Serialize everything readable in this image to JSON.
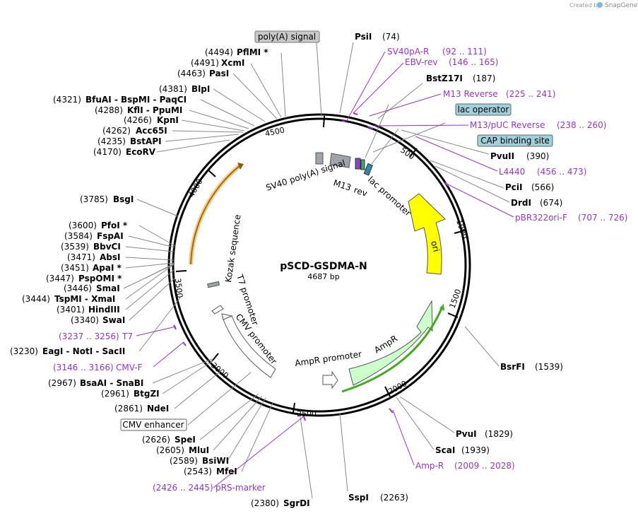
{
  "title": "pSCD-GSDMA-N",
  "length_label": "4687 bp",
  "credit": "Created by",
  "brand": "SnapGene",
  "colors": {
    "backbone": "#000000",
    "primer": "#9933cc",
    "ori": "#ffff00",
    "ampr": "#ccffcc",
    "promoter": "#ffffff",
    "grey_feature": "#a0a4a8",
    "orange": "#f0b850",
    "green": "#44aa22"
  },
  "ticks": [
    "4500",
    "500",
    "1000",
    "1500",
    "2000",
    "2500",
    "3000",
    "3500",
    "4000"
  ],
  "enzymes_left": [
    {
      "pos": "(4494)",
      "name": "PflMI *"
    },
    {
      "pos": "(4491)",
      "name": "XcmI"
    },
    {
      "pos": "(4463)",
      "name": "PasI"
    },
    {
      "pos": "(4381)",
      "name": "BlpI"
    },
    {
      "pos": "(4321)",
      "name": "BfuAI  -  BspMI  -  PaqCI"
    },
    {
      "pos": "(4288)",
      "name": "KflI  -  PpuMI"
    },
    {
      "pos": "(4266)",
      "name": "KpnI"
    },
    {
      "pos": "(4262)",
      "name": "Acc65I"
    },
    {
      "pos": "(4235)",
      "name": "BstAPI"
    },
    {
      "pos": "(4170)",
      "name": "EcoRV"
    },
    {
      "pos": "(3785)",
      "name": "BsgI"
    },
    {
      "pos": "(3600)",
      "name": "PfoI *"
    },
    {
      "pos": "(3584)",
      "name": "FspAI"
    },
    {
      "pos": "(3539)",
      "name": "BbvCI"
    },
    {
      "pos": "(3471)",
      "name": "AbsI"
    },
    {
      "pos": "(3451)",
      "name": "ApaI *"
    },
    {
      "pos": "(3447)",
      "name": "PspOMI *"
    },
    {
      "pos": "(3446)",
      "name": "SmaI"
    },
    {
      "pos": "(3444)",
      "name": "TspMI  -  XmaI"
    },
    {
      "pos": "(3401)",
      "name": "HindIII"
    },
    {
      "pos": "(3340)",
      "name": "SwaI"
    },
    {
      "pos": "(3230)",
      "name": "EagI  -  NotI  -  SacII"
    },
    {
      "pos": "(2967)",
      "name": "BsaAI  -  SnaBI"
    },
    {
      "pos": "(2961)",
      "name": "BtgZI"
    },
    {
      "pos": "(2861)",
      "name": "NdeI"
    },
    {
      "pos": "(2626)",
      "name": "SpeI"
    },
    {
      "pos": "(2605)",
      "name": "MluI"
    },
    {
      "pos": "(2589)",
      "name": "BsiWI"
    },
    {
      "pos": "(2543)",
      "name": "MfeI"
    },
    {
      "pos": "(2380)",
      "name": "SgrDI"
    }
  ],
  "enzymes_right": [
    {
      "name": "PsiI",
      "pos": "(74)"
    },
    {
      "name": "BstZ17I",
      "pos": "(187)"
    },
    {
      "name": "PvuII",
      "pos": "(390)"
    },
    {
      "name": "PciI",
      "pos": "(566)"
    },
    {
      "name": "DrdI",
      "pos": "(674)"
    },
    {
      "name": "BsrFI",
      "pos": "(1539)"
    },
    {
      "name": "PvuI",
      "pos": "(1829)"
    },
    {
      "name": "ScaI",
      "pos": "(1939)"
    },
    {
      "name": "SspI",
      "pos": "(2263)"
    }
  ],
  "primers_right": [
    {
      "name": "SV40pA-R",
      "range": "(92 .. 111)"
    },
    {
      "name": "EBV-rev",
      "range": "(146 .. 165)"
    },
    {
      "name": "M13 Reverse",
      "range": "(225 .. 241)"
    },
    {
      "name": "M13/pUC Reverse",
      "range": "(238 .. 260)"
    },
    {
      "name": "L4440",
      "range": "(456 .. 473)"
    },
    {
      "name": "pBR322ori-F",
      "range": "(707 .. 726)"
    },
    {
      "name": "Amp-R",
      "range": "(2009 .. 2028)"
    }
  ],
  "primers_left": [
    {
      "range": "(3237 .. 3256)",
      "name": "T7"
    },
    {
      "range": "(3146 .. 3166)",
      "name": "CMV-F"
    },
    {
      "range": "(2426 .. 2445)",
      "name": "pRS-marker"
    }
  ],
  "boxed_labels": [
    "poly(A) signal",
    "lac operator",
    "CAP binding site",
    "CMV enhancer"
  ],
  "feature_labels": {
    "sv40": "SV40 poly(A) signal",
    "m13": "M13",
    "rev": "rev",
    "lac": "lac promoter",
    "ori": "ori",
    "kozak": "Kozak sequence",
    "t7": "T7 promoter",
    "cmv": "CMV promoter",
    "ampr_prom": "AmpR promoter",
    "ampr": "AmpR"
  }
}
